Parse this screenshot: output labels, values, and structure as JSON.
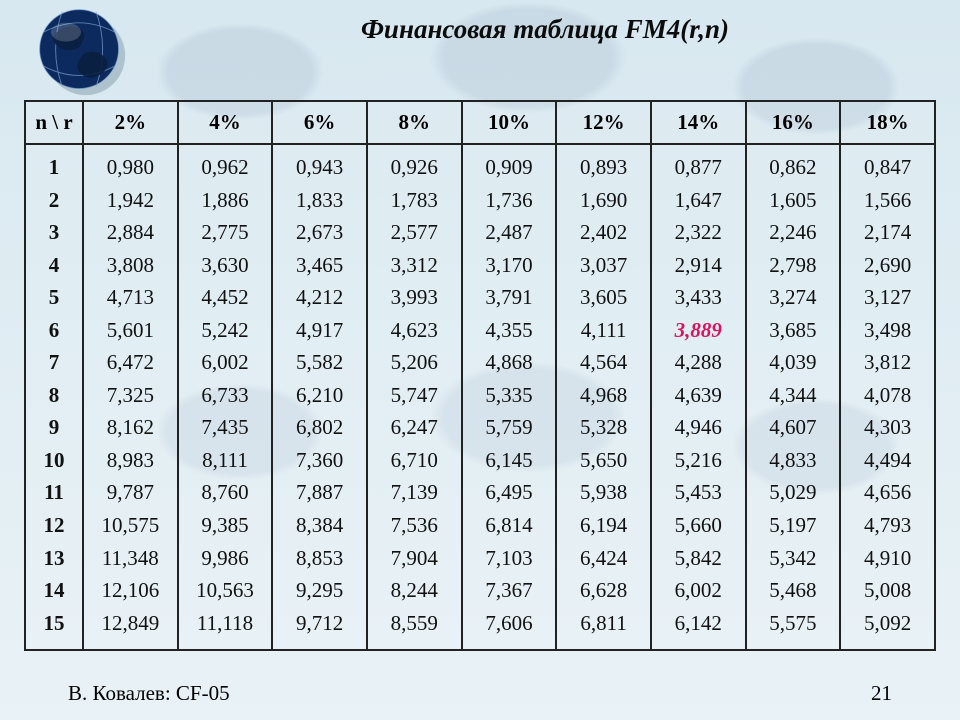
{
  "title": "Финансовая таблица FM4(r,n)",
  "footer": {
    "author": "В. Ковалев: CF-05",
    "page": "21"
  },
  "globe": {
    "fill": "#0c2a5e",
    "shadow": "#8fa9b6",
    "grid": "#7fa6d4",
    "land": "#0a1f40"
  },
  "table": {
    "corner": "n \\ r",
    "columns": [
      "2%",
      "4%",
      "6%",
      "8%",
      "10%",
      "12%",
      "14%",
      "16%",
      "18%"
    ],
    "n": [
      "1",
      "2",
      "3",
      "4",
      "5",
      "6",
      "7",
      "8",
      "9",
      "10",
      "11",
      "12",
      "13",
      "14",
      "15"
    ],
    "data": {
      "2%": [
        "0,980",
        "1,942",
        "2,884",
        "3,808",
        "4,713",
        "5,601",
        "6,472",
        "7,325",
        "8,162",
        "8,983",
        "9,787",
        "10,575",
        "11,348",
        "12,106",
        "12,849"
      ],
      "4%": [
        "0,962",
        "1,886",
        "2,775",
        "3,630",
        "4,452",
        "5,242",
        "6,002",
        "6,733",
        "7,435",
        "8,111",
        "8,760",
        "9,385",
        "9,986",
        "10,563",
        "11,118"
      ],
      "6%": [
        "0,943",
        "1,833",
        "2,673",
        "3,465",
        "4,212",
        "4,917",
        "5,582",
        "6,210",
        "6,802",
        "7,360",
        "7,887",
        "8,384",
        "8,853",
        "9,295",
        "9,712"
      ],
      "8%": [
        "0,926",
        "1,783",
        "2,577",
        "3,312",
        "3,993",
        "4,623",
        "5,206",
        "5,747",
        "6,247",
        "6,710",
        "7,139",
        "7,536",
        "7,904",
        "8,244",
        "8,559"
      ],
      "10%": [
        "0,909",
        "1,736",
        "2,487",
        "3,170",
        "3,791",
        "4,355",
        "4,868",
        "5,335",
        "5,759",
        "6,145",
        "6,495",
        "6,814",
        "7,103",
        "7,367",
        "7,606"
      ],
      "12%": [
        "0,893",
        "1,690",
        "2,402",
        "3,037",
        "3,605",
        "4,111",
        "4,564",
        "4,968",
        "5,328",
        "5,650",
        "5,938",
        "6,194",
        "6,424",
        "6,628",
        "6,811"
      ],
      "14%": [
        "0,877",
        "1,647",
        "2,322",
        "2,914",
        "3,433",
        "3,889",
        "4,288",
        "4,639",
        "4,946",
        "5,216",
        "5,453",
        "5,660",
        "5,842",
        "6,002",
        "6,142"
      ],
      "16%": [
        "0,862",
        "1,605",
        "2,246",
        "2,798",
        "3,274",
        "3,685",
        "4,039",
        "4,344",
        "4,607",
        "4,833",
        "5,029",
        "5,197",
        "5,342",
        "5,468",
        "5,575"
      ],
      "18%": [
        "0,847",
        "1,566",
        "2,174",
        "2,690",
        "3,127",
        "3,498",
        "3,812",
        "4,078",
        "4,303",
        "4,494",
        "4,656",
        "4,793",
        "4,910",
        "5,008",
        "5,092"
      ]
    },
    "highlight": {
      "col": "14%",
      "row_index": 5
    },
    "text_color": "#111111",
    "highlight_color": "#d8155c",
    "highlight_weight": "bold",
    "highlight_style": "italic",
    "value_fontsize": 21,
    "header_fontsize": 21,
    "border_color": "#222222",
    "background_color": "transparent"
  }
}
